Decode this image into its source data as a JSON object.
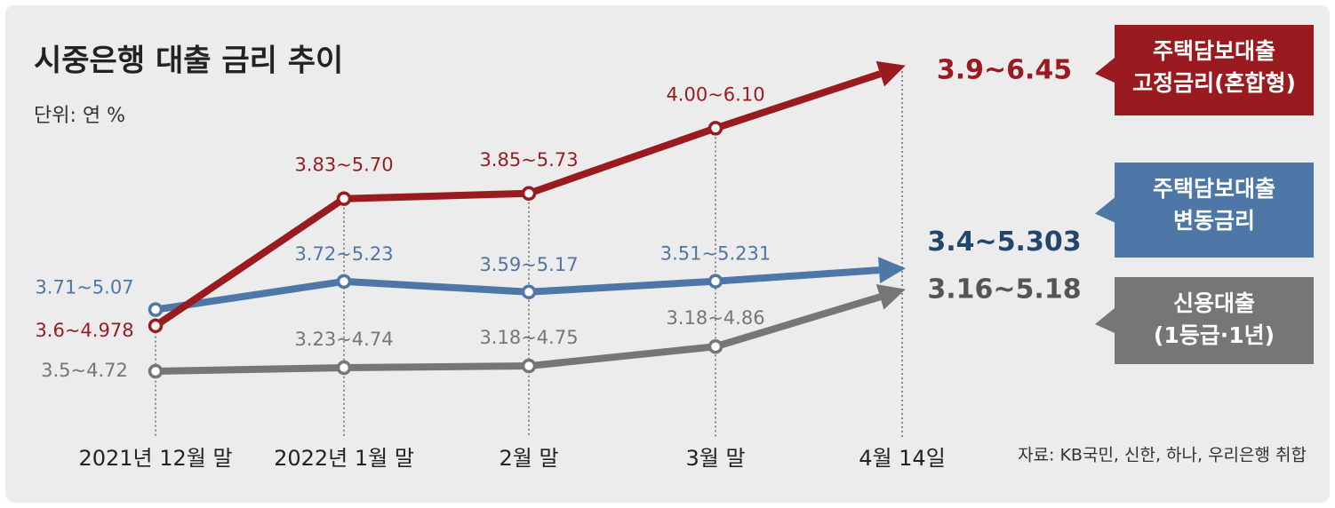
{
  "chart_data": {
    "type": "line",
    "title": "시중은행 대출 금리 추이",
    "subtitle": "단위: 연 %",
    "source": "자료: KB국민, 신한, 하나, 우리은행 취합",
    "categories": [
      "2021년 12월 말",
      "2022년 1월 말",
      "2월 말",
      "3월 말",
      "4월 14일"
    ],
    "series": [
      {
        "name": "주택담보대출\n고정금리(혼합형)",
        "color": "#9a1b1f",
        "values": [
          4.978,
          5.7,
          5.73,
          6.1,
          6.45
        ],
        "value_labels": [
          "3.6~4.978",
          "3.83~5.70",
          "3.85~5.73",
          "4.00~6.10",
          "3.9~6.45"
        ]
      },
      {
        "name": "주택담보대출\n변동금리",
        "color": "#4e76a6",
        "values": [
          5.07,
          5.23,
          5.17,
          5.231,
          5.303
        ],
        "value_labels": [
          "3.71~5.07",
          "3.72~5.23",
          "3.59~5.17",
          "3.51~5.231",
          "3.4~5.303"
        ]
      },
      {
        "name": "신용대출\n(1등급·1년)",
        "color": "#767676",
        "values": [
          4.72,
          4.74,
          4.75,
          4.86,
          5.18
        ],
        "value_labels": [
          "3.5~4.72",
          "3.23~4.74",
          "3.18~4.75",
          "3.18~4.86",
          "3.16~5.18"
        ]
      }
    ]
  }
}
